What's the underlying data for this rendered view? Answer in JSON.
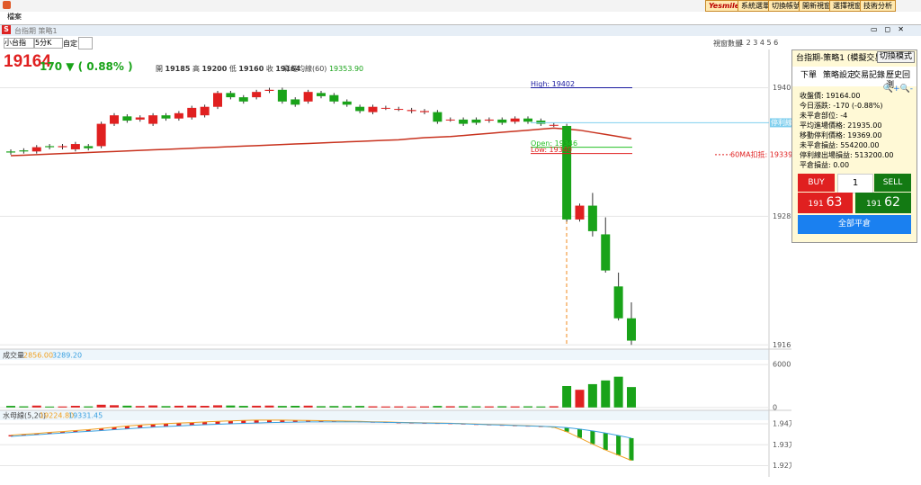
{
  "window": {
    "menu": "檔案",
    "brand": "Yesmile",
    "toolbar_buttons": [
      "系統選單",
      "切換帳號",
      "開新視窗",
      "選擇視窗",
      "技術分析"
    ],
    "tab_title": "台指期 策略1",
    "product": "小台指",
    "period": "5分K",
    "custom": "自定",
    "window_count_label": "視窗數量",
    "window_counts": "1 2 3 4 5 6"
  },
  "quote": {
    "price": "19164",
    "change": "170 ▼ ( 0.88% )",
    "open_label": "開",
    "open": "19185",
    "high_label": "高",
    "high": "19200",
    "low_label": "低",
    "low": "19160",
    "close_label": "收",
    "close": "19164",
    "ma_label": "彩虹均線(60)",
    "ma_value": "19353.90"
  },
  "panel": {
    "title": "台指期-策略1 (模擬交易)",
    "mode_button": "切換模式",
    "tabs": [
      "下單",
      "策略設定",
      "交易記錄",
      "歷史回測"
    ],
    "info": [
      "收盤價: 19164.00",
      "今日漲跌: -170 (-0.88%)",
      "未平倉部位: -4",
      "平均進場價格: 21935.00",
      "移動停利價格: 19369.00",
      "未平倉損益: 554200.00",
      "停利線出場損益: 513200.00",
      "平倉損益: 0.00"
    ],
    "buy": "BUY",
    "qty": "1",
    "sell": "SELL",
    "buy_price_head": "191",
    "buy_price_tail": "63",
    "sell_price_head": "191",
    "sell_price_tail": "62",
    "close_all": "全部平倉"
  },
  "chart_data": [
    {
      "type": "candlestick",
      "up_color": "#e02020",
      "down_color": "#19a319",
      "ylim": [
        19156,
        19410
      ],
      "yticks": [
        19402,
        19281,
        19160
      ],
      "grid": true,
      "open": [
        19342,
        19343,
        19342,
        19347,
        19346,
        19344,
        19347,
        19347,
        19368,
        19375,
        19372,
        19368,
        19376,
        19373,
        19374,
        19376,
        19384,
        19397,
        19393,
        19393,
        19399,
        19400,
        19391,
        19389,
        19397,
        19395,
        19389,
        19384,
        19379,
        19383,
        19382,
        19380,
        19379,
        19379,
        19372,
        19372,
        19372,
        19371,
        19372,
        19370,
        19373,
        19371,
        19367,
        19366,
        19278,
        19291,
        19264,
        19215,
        19185
      ],
      "high": [
        19344,
        19345,
        19348,
        19349,
        19349,
        19351,
        19349,
        19370,
        19378,
        19377,
        19376,
        19378,
        19378,
        19380,
        19385,
        19386,
        19399,
        19399,
        19395,
        19400,
        19402,
        19402,
        19393,
        19400,
        19399,
        19397,
        19391,
        19386,
        19386,
        19385,
        19384,
        19383,
        19382,
        19381,
        19374,
        19374,
        19374,
        19374,
        19374,
        19375,
        19375,
        19373,
        19369,
        19368,
        19293,
        19303,
        19280,
        19228,
        19200
      ],
      "low": [
        19339,
        19340,
        19340,
        19344,
        19344,
        19342,
        19343,
        19345,
        19366,
        19369,
        19370,
        19366,
        19371,
        19371,
        19372,
        19374,
        19382,
        19391,
        19387,
        19391,
        19397,
        19387,
        19384,
        19387,
        19392,
        19387,
        19384,
        19378,
        19377,
        19381,
        19380,
        19378,
        19377,
        19368,
        19370,
        19366,
        19367,
        19369,
        19367,
        19368,
        19368,
        19366,
        19365,
        19276,
        19276,
        19262,
        19228,
        19183,
        19160
      ],
      "close": [
        19341,
        19342,
        19346,
        19346,
        19347,
        19349,
        19345,
        19368,
        19376,
        19371,
        19374,
        19376,
        19373,
        19378,
        19383,
        19384,
        19397,
        19393,
        19389,
        19398,
        19400,
        19389,
        19386,
        19398,
        19394,
        19389,
        19386,
        19380,
        19384,
        19383,
        19382,
        19381,
        19380,
        19370,
        19372,
        19368,
        19369,
        19372,
        19369,
        19373,
        19370,
        19368,
        19367,
        19278,
        19291,
        19267,
        19230,
        19185,
        19164
      ],
      "lines": [
        {
          "color": "#c8321e",
          "values": [
            19338,
            19338.5,
            19339,
            19339.5,
            19340,
            19340.5,
            19341,
            19341.5,
            19342,
            19342.5,
            19343,
            19343.5,
            19344,
            19344.5,
            19345,
            19345.5,
            19346,
            19346.5,
            19347,
            19347.5,
            19348,
            19348.5,
            19349,
            19349.5,
            19350,
            19350.5,
            19351,
            19351.5,
            19352,
            19352.5,
            19353,
            19354,
            19355,
            19355.5,
            19356,
            19357,
            19358,
            19359,
            19360,
            19361,
            19362,
            19363,
            19364,
            19363,
            19362,
            19360,
            19358,
            19356,
            19353.9
          ]
        }
      ],
      "session_lines": [
        {
          "label": "High: 19402",
          "value": 19402,
          "color": "#1a1aa0"
        },
        {
          "label": "Open: 19346",
          "value": 19346,
          "color": "#25c025"
        },
        {
          "label": "Low: 19340",
          "value": 19340,
          "color": "#e02020"
        }
      ],
      "stop_line": {
        "label": "停利線",
        "value": 19369,
        "color": "#7fcfee"
      },
      "annotation": {
        "label": "60MA扣抵: 19339.00",
        "value": 19339,
        "color": "#e02020"
      }
    },
    {
      "type": "bar",
      "title": "成交量",
      "legend_values": [
        "2856.00",
        "3289.20"
      ],
      "legend_colors": [
        "#f0a020",
        "#3aa0e0"
      ],
      "ylim": [
        -400,
        6650
      ],
      "yticks": [
        6000,
        0
      ],
      "values": [
        220,
        160,
        260,
        130,
        140,
        230,
        150,
        380,
        310,
        250,
        200,
        280,
        190,
        240,
        260,
        230,
        300,
        270,
        220,
        240,
        260,
        210,
        230,
        250,
        180,
        200,
        190,
        210,
        160,
        140,
        150,
        130,
        150,
        210,
        170,
        180,
        160,
        150,
        170,
        150,
        160,
        140,
        170,
        3000,
        2470,
        3260,
        3780,
        4300,
        2856
      ]
    },
    {
      "type": "band-bar",
      "title": "水母線(5,20)",
      "legend_values": [
        "19224.80",
        "19331.45"
      ],
      "up_color": "#e02020",
      "down_color": "#19a319",
      "ylim": [
        19172,
        19456
      ],
      "yticks": [
        {
          "value": 19400,
          "label": "1.94万"
        },
        {
          "value": 19300,
          "label": "1.93万"
        },
        {
          "value": 19200,
          "label": "1.92万"
        }
      ],
      "series": [
        {
          "color": "#f0a020",
          "values": [
            19346,
            19350,
            19354,
            19359,
            19363,
            19368,
            19372,
            19378,
            19384,
            19390,
            19394,
            19398,
            19401,
            19404,
            19406,
            19409,
            19412,
            19414,
            19416,
            19418,
            19418,
            19418,
            19417,
            19416,
            19415,
            19414,
            19413,
            19412,
            19410,
            19409,
            19407,
            19406,
            19405,
            19404,
            19403,
            19401,
            19399,
            19397,
            19395,
            19393,
            19391,
            19389,
            19384,
            19362,
            19333,
            19303,
            19275,
            19250,
            19224.8
          ]
        },
        {
          "color": "#3aa0e0",
          "values": [
            19340,
            19344,
            19348,
            19352,
            19356,
            19360,
            19364,
            19368,
            19372,
            19376,
            19380,
            19384,
            19387,
            19390,
            19393,
            19396,
            19398,
            19400,
            19402,
            19404,
            19406,
            19407,
            19408,
            19409,
            19409,
            19409,
            19409,
            19409,
            19408,
            19407,
            19406,
            19405,
            19404,
            19403,
            19402,
            19400,
            19398,
            19396,
            19394,
            19392,
            19390,
            19388,
            19386,
            19382,
            19375,
            19366,
            19356,
            19344,
            19331.45
          ]
        }
      ]
    }
  ]
}
